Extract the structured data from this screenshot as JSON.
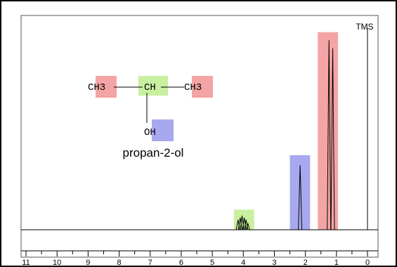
{
  "chart_data": {
    "type": "line",
    "title": "",
    "xlabel": "",
    "ylabel": "",
    "x_axis_reversed": true,
    "xlim": [
      11,
      0
    ],
    "x_ticks": [
      "11",
      "10",
      "9",
      "8",
      "7",
      "6",
      "5",
      "4",
      "3",
      "2",
      "1",
      "0"
    ],
    "reference_label": "TMS",
    "reference_x": 0,
    "molecule_name": "propan-2-ol",
    "molecule_groups": {
      "left_methyl": "CH3",
      "methine": "CH",
      "right_methyl": "CH3",
      "hydroxyl": "OH"
    },
    "highlight_colors": {
      "methyl": "#f4a4a4",
      "methine": "#c8f0a0",
      "hydroxyl": "#a8a8f0"
    },
    "highlights": [
      {
        "group": "methine",
        "from": 4.3,
        "to": 3.65,
        "level": 0.1
      },
      {
        "group": "hydroxyl",
        "from": 2.5,
        "to": 1.85,
        "level": 0.37
      },
      {
        "group": "methyl",
        "from": 1.6,
        "to": 0.95,
        "level": 0.98
      }
    ],
    "peaks": [
      {
        "group": "methine",
        "x": 4.17,
        "height": 0.05
      },
      {
        "group": "methine",
        "x": 4.1,
        "height": 0.06
      },
      {
        "group": "methine",
        "x": 4.04,
        "height": 0.07
      },
      {
        "group": "methine",
        "x": 3.97,
        "height": 0.06
      },
      {
        "group": "methine",
        "x": 3.91,
        "height": 0.05
      },
      {
        "group": "methine",
        "x": 3.85,
        "height": 0.03
      },
      {
        "group": "hydroxyl",
        "x": 2.17,
        "height": 0.32
      },
      {
        "group": "methyl",
        "x": 1.24,
        "height": 0.94
      },
      {
        "group": "methyl",
        "x": 1.12,
        "height": 0.9
      }
    ]
  }
}
